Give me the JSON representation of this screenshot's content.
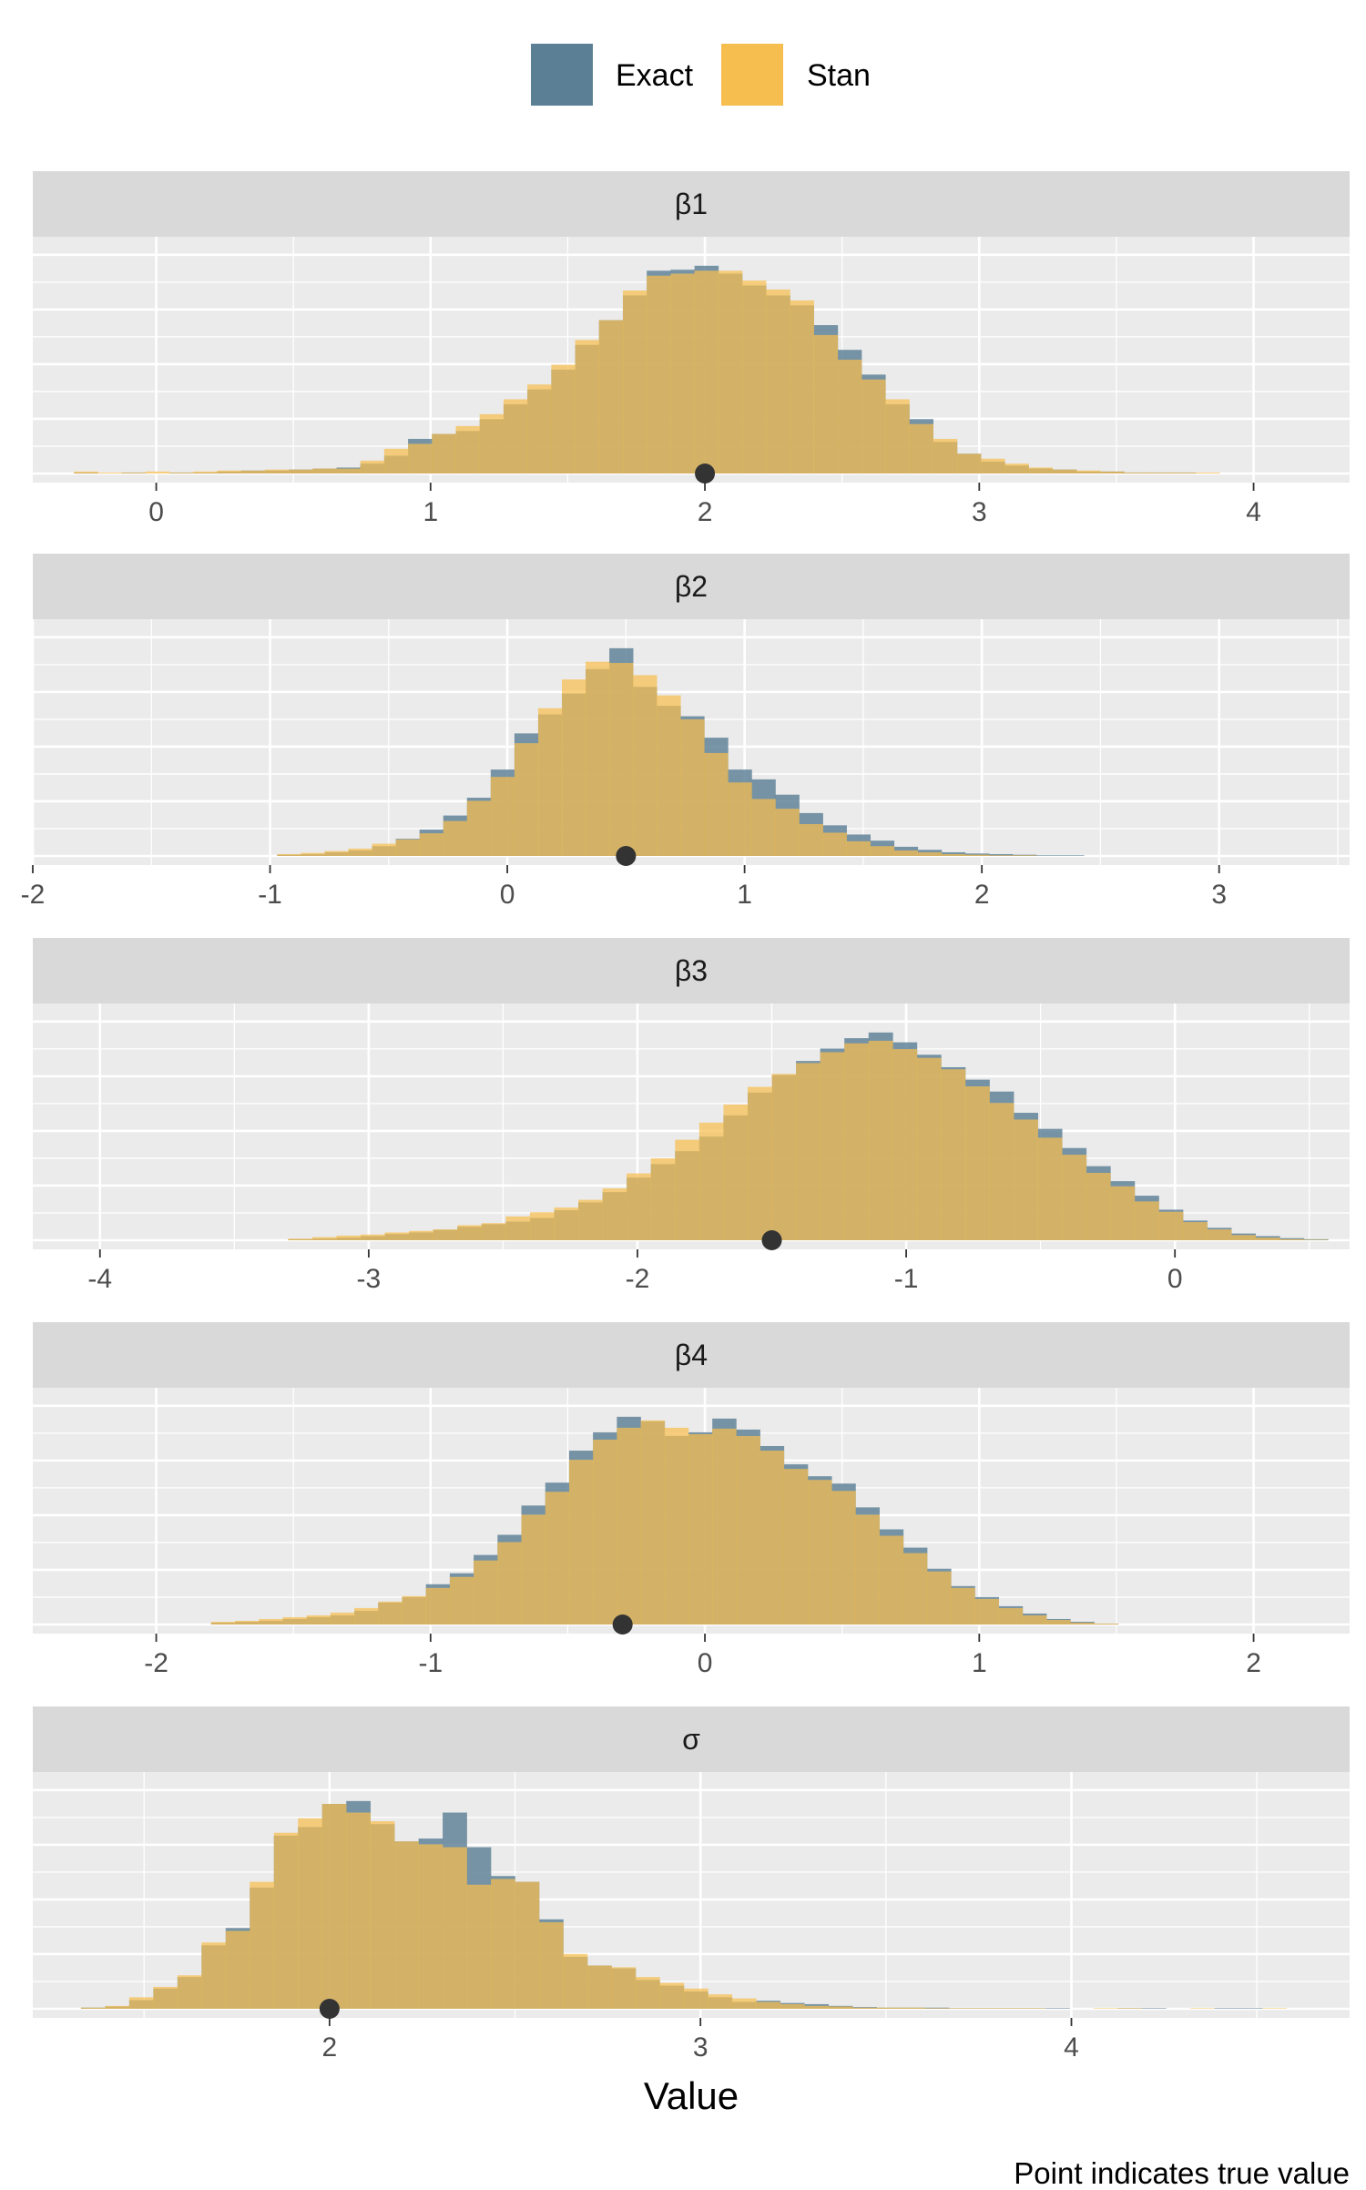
{
  "chart_data": {
    "type": "histogram",
    "xlabel": "Value",
    "caption": "Point indicates true value",
    "legend": {
      "position": "top",
      "entries": [
        {
          "name": "Exact",
          "color": "#5b7f95"
        },
        {
          "name": "Stan",
          "color": "#f6be4f"
        }
      ]
    },
    "overlap_color": "#b89c53",
    "point_color": "#333333",
    "panels": [
      {
        "label": "β1",
        "xlim": [
          -0.45,
          4.35
        ],
        "ticks": [
          "0",
          "1",
          "2",
          "3",
          "4"
        ],
        "tick_values": [
          0,
          1,
          2,
          3,
          4
        ],
        "true_value": 2.0,
        "bin_start": -0.3,
        "bin_width": 0.087,
        "exact": [
          0.1,
          0,
          0.1,
          0,
          0.1,
          0.1,
          0.2,
          0.3,
          0.3,
          0.4,
          0.5,
          0.6,
          1.0,
          1.8,
          3.5,
          4.0,
          4.3,
          5.5,
          7.0,
          8.5,
          10.5,
          13.0,
          15.5,
          18.0,
          20.5,
          20.6,
          21.0,
          20.2,
          19.0,
          18.0,
          17.0,
          15.0,
          12.5,
          10.0,
          7.0,
          5.5,
          3.2,
          2.0,
          1.2,
          0.8,
          0.5,
          0.4,
          0.2,
          0.2,
          0.1,
          0.1,
          0.1,
          0,
          0,
          0
        ],
        "stan": [
          0.2,
          0.1,
          0.1,
          0.2,
          0.1,
          0.2,
          0.3,
          0.3,
          0.4,
          0.4,
          0.5,
          0.5,
          1.3,
          2.5,
          3.0,
          4.0,
          4.8,
          6.0,
          7.5,
          9.0,
          11.0,
          13.5,
          15.5,
          18.5,
          20.0,
          20.2,
          20.5,
          20.5,
          19.5,
          18.6,
          17.5,
          14.0,
          11.5,
          9.5,
          7.5,
          5.0,
          3.5,
          2.0,
          1.5,
          1.0,
          0.6,
          0.4,
          0.3,
          0.2,
          0.1,
          0.1,
          0.1,
          0.1,
          0,
          0
        ]
      },
      {
        "label": "β2",
        "xlim": [
          -2.0,
          3.55
        ],
        "ticks": [
          "-2",
          "-1",
          "0",
          "1",
          "2",
          "3"
        ],
        "tick_values": [
          -2,
          -1,
          0,
          1,
          2,
          3
        ],
        "true_value": 0.5,
        "bin_start": -0.97,
        "bin_width": 0.1,
        "exact": [
          0.2,
          0.3,
          0.6,
          0.9,
          1.6,
          2.8,
          4.3,
          6.6,
          9.5,
          14.1,
          20.0,
          23.1,
          26.5,
          30.5,
          33.9,
          27.6,
          24.5,
          22.8,
          19.3,
          14.1,
          12.5,
          10.0,
          7.0,
          5.0,
          3.5,
          2.5,
          1.5,
          1.0,
          0.6,
          0.4,
          0.3,
          0.2,
          0.1,
          0.1
        ],
        "stan": [
          0.3,
          0.5,
          0.8,
          1.2,
          2.0,
          2.7,
          3.7,
          5.7,
          9.0,
          12.9,
          18.4,
          24.1,
          28.8,
          31.7,
          31.5,
          29.5,
          26.2,
          22.3,
          16.8,
          12.0,
          9.3,
          7.7,
          5.2,
          3.8,
          2.4,
          1.6,
          0.9,
          0.6,
          0.3,
          0.2,
          0.1,
          0.1,
          0,
          0
        ]
      },
      {
        "label": "β3",
        "xlim": [
          -4.25,
          0.65
        ],
        "ticks": [
          "-4",
          "-3",
          "-2",
          "-1",
          "0"
        ],
        "tick_values": [
          -4,
          -3,
          -2,
          -1,
          0
        ],
        "true_value": -1.5,
        "bin_start": -3.3,
        "bin_width": 0.09,
        "exact": [
          0.2,
          0.3,
          0.5,
          0.8,
          1.2,
          1.5,
          2.0,
          2.6,
          3.1,
          3.6,
          4.3,
          5.8,
          7.3,
          9.3,
          12.1,
          14.7,
          17.2,
          20.0,
          24.1,
          28.5,
          31.9,
          34.6,
          37.0,
          39.0,
          40.1,
          38.2,
          35.8,
          33.4,
          31.0,
          28.7,
          24.6,
          21.5,
          17.8,
          14.3,
          11.4,
          8.6,
          5.9,
          3.8,
          2.4,
          1.3,
          0.8,
          0.4,
          0.2
        ],
        "stan": [
          0.3,
          0.6,
          0.9,
          1.1,
          1.5,
          1.8,
          2.1,
          2.9,
          3.3,
          4.6,
          5.4,
          6.3,
          7.8,
          10.0,
          12.9,
          15.8,
          19.4,
          22.7,
          26.2,
          29.6,
          32.1,
          34.2,
          36.3,
          38.0,
          38.5,
          36.9,
          35.2,
          33.0,
          29.7,
          26.5,
          23.3,
          19.8,
          16.5,
          13.0,
          10.4,
          7.5,
          5.5,
          3.5,
          2.1,
          1.0,
          0.5,
          0.2,
          0.1
        ]
      },
      {
        "label": "β4",
        "xlim": [
          -2.45,
          2.35
        ],
        "ticks": [
          "-2",
          "-1",
          "0",
          "1",
          "2"
        ],
        "tick_values": [
          -2,
          -1,
          0,
          1,
          2
        ],
        "true_value": -0.3,
        "bin_start": -1.8,
        "bin_width": 0.087,
        "exact": [
          0.2,
          0.3,
          0.4,
          0.6,
          0.8,
          1.0,
          1.5,
          2.4,
          3.0,
          4.4,
          5.6,
          7.6,
          9.8,
          13.0,
          15.5,
          19.0,
          21.0,
          22.7,
          22.2,
          20.6,
          21.0,
          22.5,
          21.3,
          19.5,
          17.5,
          16.2,
          15.4,
          12.8,
          10.4,
          8.4,
          6.1,
          4.2,
          3.0,
          2.0,
          1.2,
          0.6,
          0.3,
          0.1
        ],
        "stan": [
          0.3,
          0.4,
          0.6,
          0.8,
          1.0,
          1.3,
          1.8,
          2.5,
          3.1,
          4.0,
          5.2,
          7.0,
          9.0,
          12.0,
          14.5,
          18.0,
          20.2,
          21.5,
          22.3,
          21.5,
          20.8,
          21.4,
          20.6,
          19.0,
          17.0,
          15.8,
          14.6,
          12.0,
          9.7,
          7.8,
          5.8,
          4.0,
          2.8,
          1.8,
          1.0,
          0.5,
          0.2,
          0.1
        ]
      },
      {
        "label": "σ",
        "xlim": [
          1.2,
          4.75
        ],
        "ticks": [
          "2",
          "3",
          "4"
        ],
        "tick_values": [
          2,
          3,
          4
        ],
        "true_value": 2.0,
        "bin_start": 1.33,
        "bin_width": 0.065,
        "exact": [
          0.2,
          0.4,
          1.5,
          3.5,
          5.5,
          11.0,
          14.0,
          21.0,
          30.0,
          31.5,
          35.5,
          36.0,
          32.0,
          29.0,
          29.5,
          34.0,
          28.0,
          23.0,
          22.0,
          15.5,
          9.0,
          7.5,
          7.0,
          5.0,
          4.0,
          3.0,
          2.0,
          1.2,
          1.4,
          1.0,
          0.8,
          0.5,
          0.3,
          0.2,
          0.2,
          0.2,
          0.1,
          0.1,
          0.1,
          0.1,
          0.1,
          0,
          0,
          0.1,
          0.1,
          0,
          0,
          0.1,
          0.1,
          0
        ],
        "stan": [
          0.2,
          0.5,
          2.0,
          3.8,
          5.8,
          11.5,
          13.5,
          22.0,
          30.5,
          33.0,
          35.5,
          34.0,
          32.5,
          29.0,
          28.5,
          28.0,
          21.5,
          22.5,
          22.0,
          15.0,
          9.5,
          7.5,
          7.2,
          5.5,
          4.5,
          3.5,
          2.5,
          1.8,
          1.2,
          0.8,
          0.5,
          0.4,
          0.2,
          0.2,
          0.2,
          0.1,
          0.1,
          0.1,
          0.1,
          0.1,
          0,
          0,
          0.1,
          0.1,
          0,
          0,
          0.1,
          0,
          0,
          0.1
        ]
      }
    ]
  }
}
